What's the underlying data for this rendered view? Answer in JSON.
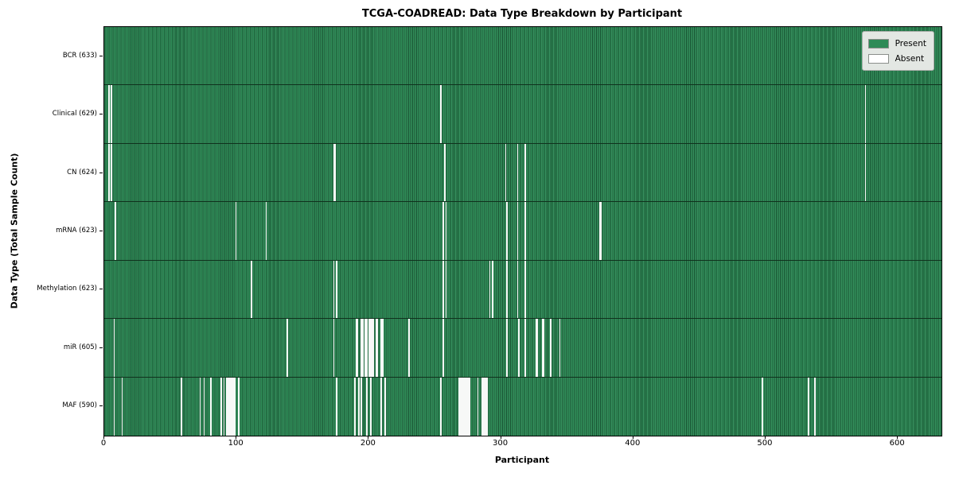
{
  "chart_data": {
    "type": "heatmap",
    "title": "TCGA-COADREAD: Data Type Breakdown by Participant",
    "xlabel": "Participant",
    "ylabel": "Data Type (Total Sample Count)",
    "x_ticks": [
      0,
      100,
      200,
      300,
      400,
      500,
      600
    ],
    "x_range": [
      0,
      633
    ],
    "total_participants": 633,
    "grid": false,
    "legend_position": "upper right",
    "colors": {
      "present": "#2e8b57",
      "absent": "#ffffff",
      "row_divider": "#10311d"
    },
    "legend": [
      {
        "label": "Present",
        "color": "#2e8b57"
      },
      {
        "label": "Absent",
        "color": "#ffffff"
      }
    ],
    "rows": [
      {
        "name": "BCR",
        "label": "BCR (633)",
        "present_count": 633,
        "absent_count": 0,
        "absent_indices": []
      },
      {
        "name": "Clinical",
        "label": "Clinical (629)",
        "present_count": 629,
        "absent_count": 4,
        "absent_indices": [
          3,
          5,
          254,
          575
        ]
      },
      {
        "name": "CN",
        "label": "CN (624)",
        "present_count": 624,
        "absent_count": 9,
        "absent_indices": [
          3,
          5,
          173,
          174,
          257,
          303,
          312,
          318,
          575
        ]
      },
      {
        "name": "mRNA",
        "label": "mRNA (623)",
        "present_count": 623,
        "absent_count": 10,
        "absent_indices": [
          8,
          99,
          122,
          256,
          258,
          304,
          312,
          318,
          374,
          375
        ]
      },
      {
        "name": "Methylation",
        "label": "Methylation (623)",
        "present_count": 623,
        "absent_count": 10,
        "absent_indices": [
          111,
          173,
          175,
          256,
          258,
          291,
          293,
          304,
          312,
          318
        ]
      },
      {
        "name": "miR",
        "label": "miR (605)",
        "present_count": 605,
        "absent_count": 28,
        "absent_indices": [
          7,
          138,
          173,
          190,
          191,
          194,
          195,
          197,
          198,
          200,
          201,
          202,
          203,
          205,
          206,
          209,
          210,
          230,
          256,
          304,
          313,
          318,
          326,
          327,
          331,
          332,
          337,
          344
        ]
      },
      {
        "name": "MAF",
        "label": "MAF (590)",
        "present_count": 590,
        "absent_count": 43,
        "absent_indices": [
          7,
          13,
          58,
          72,
          75,
          80,
          88,
          90,
          92,
          93,
          94,
          95,
          96,
          97,
          98,
          101,
          175,
          189,
          192,
          194,
          198,
          201,
          209,
          212,
          254,
          268,
          269,
          270,
          271,
          272,
          273,
          274,
          275,
          276,
          282,
          285,
          286,
          287,
          288,
          289,
          497,
          532,
          537
        ]
      }
    ]
  }
}
